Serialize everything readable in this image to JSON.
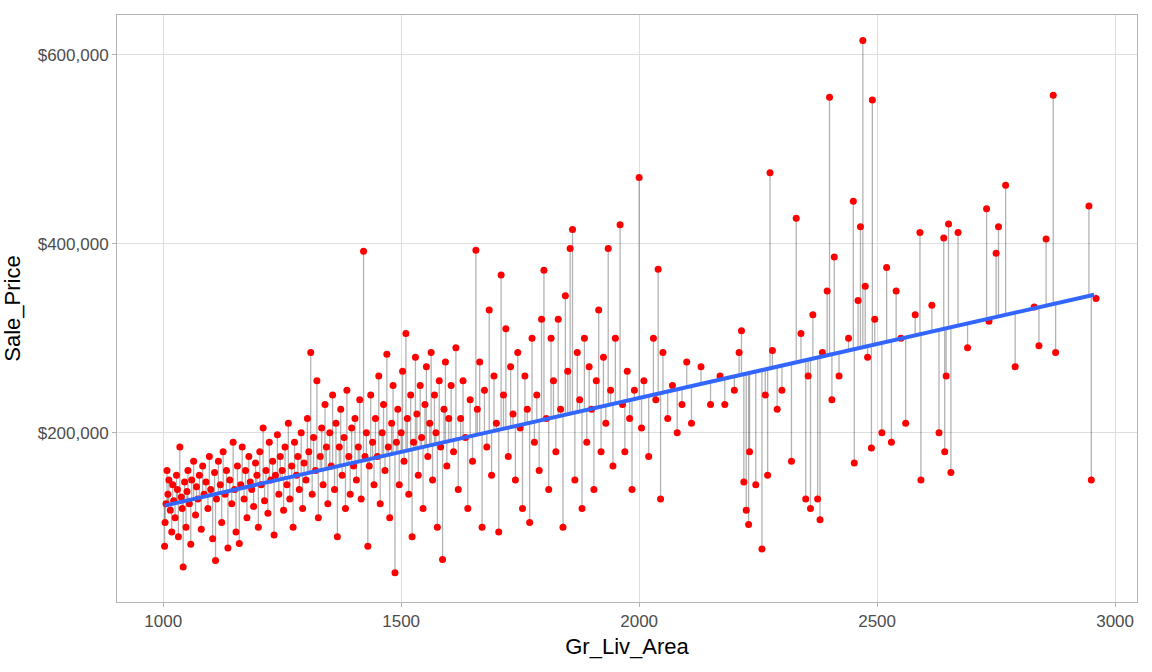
{
  "chart_data": {
    "type": "scatter",
    "x_label": "Gr_Liv_Area",
    "y_label": "Sale_Price",
    "xlim": [
      903,
      3046
    ],
    "ylim": [
      21000,
      642000
    ],
    "xticks": [
      1000,
      1500,
      2000,
      2500,
      3000
    ],
    "yticks": [
      {
        "value": 200000,
        "label": "$200,000"
      },
      {
        "value": 400000,
        "label": "$400,000"
      },
      {
        "value": 600000,
        "label": "$600,000"
      }
    ],
    "grid": true,
    "series": [
      {
        "type": "scatter",
        "color": "#ff0000",
        "marker": "circle",
        "x": [
          1003,
          1004,
          1006,
          1008,
          1010,
          1012,
          1015,
          1018,
          1020,
          1022,
          1025,
          1028,
          1030,
          1032,
          1035,
          1038,
          1040,
          1042,
          1045,
          1048,
          1050,
          1052,
          1055,
          1058,
          1060,
          1064,
          1068,
          1070,
          1073,
          1076,
          1080,
          1083,
          1086,
          1090,
          1094,
          1097,
          1100,
          1104,
          1108,
          1110,
          1112,
          1116,
          1120,
          1123,
          1126,
          1130,
          1133,
          1136,
          1140,
          1144,
          1147,
          1150,
          1153,
          1156,
          1160,
          1163,
          1166,
          1170,
          1173,
          1176,
          1180,
          1183,
          1186,
          1190,
          1194,
          1197,
          1200,
          1203,
          1206,
          1210,
          1213,
          1216,
          1220,
          1223,
          1226,
          1230,
          1233,
          1236,
          1240,
          1243,
          1246,
          1250,
          1253,
          1256,
          1260,
          1263,
          1266,
          1270,
          1273,
          1276,
          1280,
          1283,
          1286,
          1290,
          1293,
          1296,
          1300,
          1303,
          1306,
          1310,
          1313,
          1316,
          1320,
          1323,
          1326,
          1330,
          1333,
          1336,
          1340,
          1343,
          1346,
          1350,
          1353,
          1356,
          1360,
          1363,
          1366,
          1370,
          1373,
          1376,
          1380,
          1383,
          1386,
          1390,
          1393,
          1396,
          1400,
          1403,
          1406,
          1410,
          1413,
          1416,
          1421,
          1424,
          1427,
          1430,
          1433,
          1436,
          1440,
          1443,
          1446,
          1450,
          1453,
          1456,
          1460,
          1463,
          1466,
          1470,
          1473,
          1476,
          1480,
          1483,
          1487,
          1490,
          1493,
          1496,
          1500,
          1503,
          1506,
          1510,
          1513,
          1516,
          1520,
          1523,
          1526,
          1530,
          1533,
          1536,
          1540,
          1543,
          1546,
          1550,
          1553,
          1556,
          1560,
          1563,
          1566,
          1570,
          1573,
          1576,
          1580,
          1583,
          1587,
          1590,
          1593,
          1596,
          1600,
          1605,
          1610,
          1615,
          1620,
          1625,
          1630,
          1635,
          1640,
          1645,
          1650,
          1657,
          1660,
          1665,
          1670,
          1675,
          1680,
          1685,
          1690,
          1695,
          1700,
          1705,
          1710,
          1715,
          1720,
          1725,
          1730,
          1735,
          1740,
          1745,
          1750,
          1755,
          1760,
          1765,
          1770,
          1775,
          1780,
          1785,
          1790,
          1795,
          1800,
          1805,
          1810,
          1815,
          1820,
          1825,
          1830,
          1835,
          1840,
          1845,
          1850,
          1855,
          1860,
          1865,
          1870,
          1875,
          1880,
          1885,
          1890,
          1895,
          1900,
          1905,
          1910,
          1915,
          1920,
          1925,
          1930,
          1935,
          1940,
          1945,
          1950,
          1960,
          1965,
          1970,
          1975,
          1980,
          1985,
          1990,
          2000,
          2005,
          2010,
          2020,
          2030,
          2035,
          2040,
          2045,
          2050,
          2060,
          2070,
          2080,
          2090,
          2100,
          2110,
          2130,
          2150,
          2170,
          2180,
          2200,
          2210,
          2215,
          2220,
          2225,
          2230,
          2232,
          2245,
          2258,
          2265,
          2270,
          2275,
          2280,
          2290,
          2300,
          2320,
          2330,
          2340,
          2350,
          2355,
          2360,
          2365,
          2375,
          2380,
          2385,
          2395,
          2400,
          2405,
          2410,
          2420,
          2440,
          2450,
          2452,
          2460,
          2465,
          2470,
          2475,
          2480,
          2488,
          2490,
          2495,
          2510,
          2520,
          2530,
          2540,
          2550,
          2560,
          2580,
          2590,
          2592,
          2615,
          2630,
          2640,
          2642,
          2645,
          2650,
          2655,
          2670,
          2690,
          2730,
          2735,
          2750,
          2755,
          2770,
          2790,
          2830,
          2840,
          2855,
          2870,
          2875,
          2945,
          2950,
          2960
        ],
        "values": [
          80000,
          105000,
          125000,
          160000,
          135000,
          150000,
          118000,
          95000,
          145000,
          128000,
          110000,
          155000,
          140000,
          90000,
          185000,
          132000,
          120000,
          58000,
          148000,
          100000,
          138000,
          160000,
          125000,
          82000,
          150000,
          170000,
          113000,
          143000,
          130000,
          155000,
          98000,
          165000,
          135000,
          148000,
          120000,
          175000,
          140000,
          88000,
          158000,
          65000,
          130000,
          170000,
          145000,
          105000,
          180000,
          135000,
          160000,
          78000,
          150000,
          125000,
          190000,
          140000,
          95000,
          165000,
          83000,
          145000,
          185000,
          130000,
          160000,
          110000,
          175000,
          148000,
          140000,
          122000,
          168000,
          155000,
          100000,
          180000,
          145000,
          205000,
          128000,
          160000,
          115000,
          190000,
          150000,
          170000,
          92000,
          155000,
          198000,
          135000,
          175000,
          160000,
          118000,
          185000,
          145000,
          210000,
          130000,
          165000,
          100000,
          190000,
          155000,
          175000,
          140000,
          200000,
          120000,
          168000,
          150000,
          215000,
          180000,
          285000,
          135000,
          195000,
          160000,
          255000,
          110000,
          175000,
          205000,
          145000,
          230000,
          185000,
          125000,
          200000,
          165000,
          240000,
          140000,
          210000,
          90000,
          185000,
          225000,
          155000,
          195000,
          120000,
          245000,
          175000,
          135000,
          205000,
          165000,
          215000,
          150000,
          185000,
          235000,
          130000,
          392000,
          175000,
          200000,
          80000,
          165000,
          240000,
          190000,
          145000,
          215000,
          175000,
          260000,
          125000,
          200000,
          230000,
          160000,
          283000,
          185000,
          110000,
          210000,
          250000,
          52000,
          190000,
          225000,
          145000,
          200000,
          265000,
          170000,
          305000,
          215000,
          135000,
          240000,
          90000,
          190000,
          280000,
          220000,
          155000,
          250000,
          195000,
          120000,
          230000,
          270000,
          175000,
          210000,
          285000,
          150000,
          240000,
          200000,
          100000,
          255000,
          185000,
          66000,
          225000,
          275000,
          165000,
          215000,
          250000,
          180000,
          290000,
          140000,
          215000,
          255000,
          195000,
          120000,
          235000,
          170000,
          393000,
          225000,
          275000,
          100000,
          245000,
          185000,
          330000,
          155000,
          260000,
          210000,
          95000,
          367000,
          240000,
          310000,
          175000,
          270000,
          220000,
          150000,
          285000,
          205000,
          120000,
          260000,
          225000,
          105000,
          300000,
          190000,
          240000,
          160000,
          320000,
          372000,
          215000,
          140000,
          300000,
          255000,
          180000,
          320000,
          225000,
          100000,
          345000,
          265000,
          395000,
          415000,
          150000,
          285000,
          235000,
          120000,
          300000,
          190000,
          270000,
          225000,
          140000,
          255000,
          330000,
          180000,
          280000,
          210000,
          395000,
          245000,
          165000,
          300000,
          420000,
          230000,
          180000,
          265000,
          215000,
          140000,
          245000,
          470000,
          205000,
          255000,
          175000,
          300000,
          235000,
          373000,
          130000,
          285000,
          215000,
          250000,
          200000,
          230000,
          275000,
          210000,
          270000,
          230000,
          260000,
          230000,
          245000,
          285000,
          308000,
          148000,
          118000,
          103000,
          180000,
          145000,
          77000,
          240000,
          155000,
          475000,
          287000,
          225000,
          245000,
          170000,
          427000,
          305000,
          130000,
          260000,
          120000,
          325000,
          130000,
          108000,
          285000,
          350000,
          555000,
          235000,
          386000,
          260000,
          300000,
          445000,
          168000,
          340000,
          418000,
          615000,
          355000,
          280000,
          184000,
          552000,
          320000,
          200000,
          375000,
          190000,
          350000,
          300000,
          210000,
          325000,
          412000,
          150000,
          335000,
          200000,
          406000,
          180000,
          260000,
          421000,
          158000,
          412000,
          290000,
          437000,
          318000,
          390000,
          418000,
          462000,
          270000,
          333000,
          292000,
          405000,
          557000,
          285000,
          440000,
          150000,
          342000
        ]
      },
      {
        "type": "line",
        "color": "#3366ff",
        "line_style": "solid",
        "x": [
          1003,
          2956
        ],
        "values": [
          123000,
          346000
        ]
      }
    ]
  }
}
